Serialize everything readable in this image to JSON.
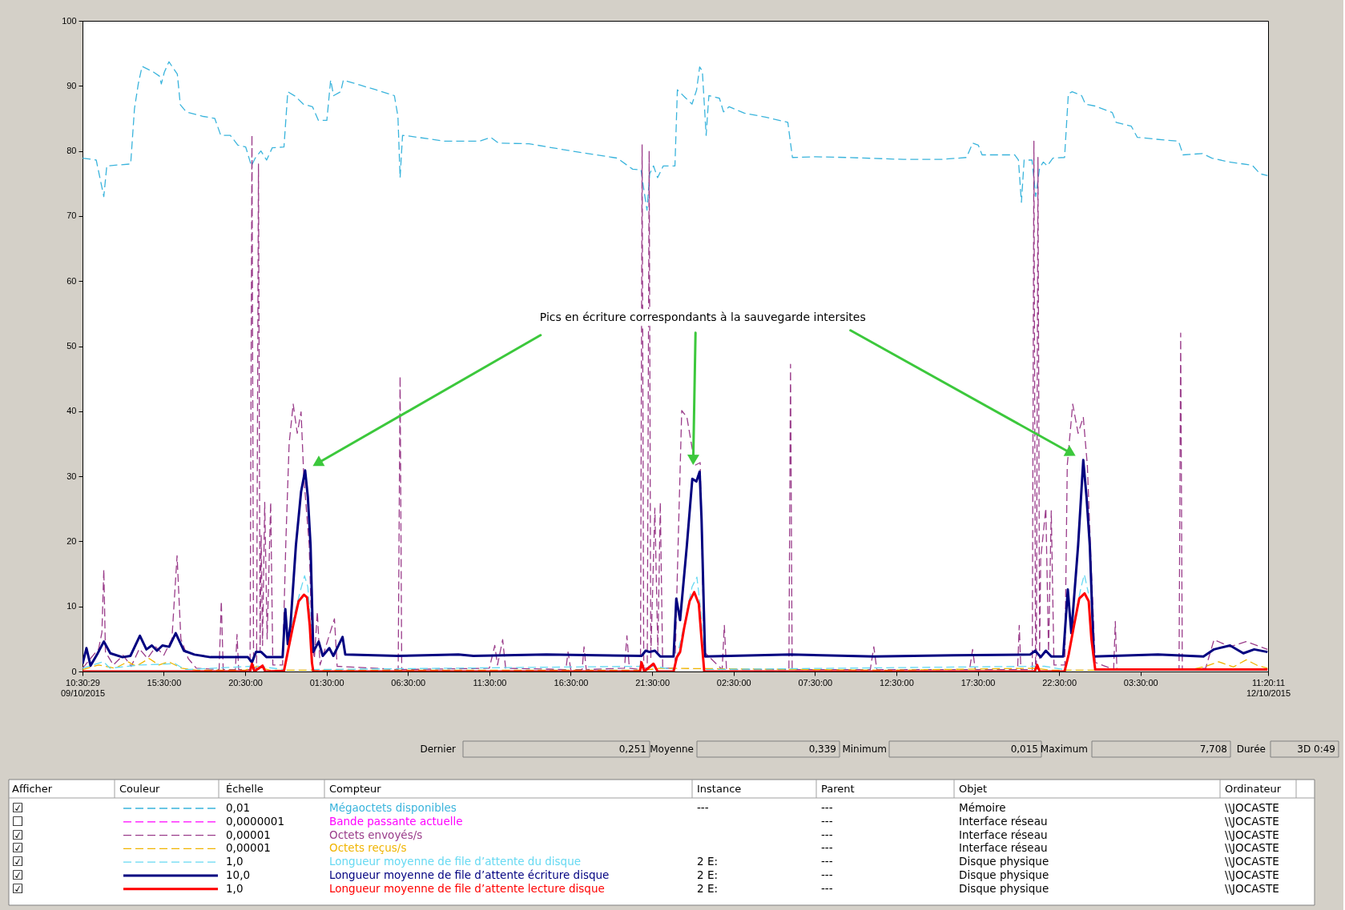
{
  "chart_data": [
    {
      "type": "line",
      "xlim": [
        "2015-10-09T10:30:29",
        "2015-10-12T11:20:11"
      ],
      "xticks": [
        {
          "value": "2015-10-09T10:30:29",
          "label": "10:30:29 09/10/2015"
        },
        {
          "value": "2015-10-09T15:30",
          "label": "15:30:00"
        },
        {
          "value": "2015-10-09T20:30",
          "label": "20:30:00"
        },
        {
          "value": "2015-10-10T01:30",
          "label": "01:30:00"
        },
        {
          "value": "2015-10-10T06:30",
          "label": "06:30:00"
        },
        {
          "value": "2015-10-10T11:30",
          "label": "11:30:00"
        },
        {
          "value": "2015-10-10T16:30",
          "label": "16:30:00"
        },
        {
          "value": "2015-10-10T21:30",
          "label": "21:30:00"
        },
        {
          "value": "2015-10-11T02:30",
          "label": "02:30:00"
        },
        {
          "value": "2015-10-11T07:30",
          "label": "07:30:00"
        },
        {
          "value": "2015-10-11T12:30",
          "label": "12:30:00"
        },
        {
          "value": "2015-10-11T17:30",
          "label": "17:30:00"
        },
        {
          "value": "2015-10-11T22:30",
          "label": "22:30:00"
        },
        {
          "value": "2015-10-12T03:30",
          "label": "03:30:00"
        },
        {
          "value": "2015-10-12T11:20:11",
          "label": "11:20:11 12/10/2015"
        }
      ],
      "ylim": [
        0,
        100
      ],
      "yticks": [
        0,
        10,
        20,
        30,
        40,
        50,
        60,
        70,
        80,
        90,
        100
      ],
      "legend": "bottom",
      "annotations": [
        {
          "text": "Pics en écriture correspondants à la sauvegarde intersites",
          "x": "2015-10-11T00:01",
          "y": 31.6
        }
      ],
      "series": [
        {
          "name": "Mégaoctets disponibles",
          "color": "#3ab4dc",
          "line_style": "dashed",
          "x": [
            "2015-10-09T10:31",
            "2015-10-09T11:21",
            "2015-10-09T11:49",
            "2015-10-09T12:00",
            "2015-10-09T13:28",
            "2015-10-09T13:42",
            "2015-10-09T13:56",
            "2015-10-09T14:10",
            "2015-10-09T14:53",
            "2015-10-09T15:14",
            "2015-10-09T15:21",
            "2015-10-09T15:32",
            "2015-10-09T15:49",
            "2015-10-09T16:20",
            "2015-10-09T16:31",
            "2015-10-09T16:53",
            "2015-10-09T17:56",
            "2015-10-09T18:38",
            "2015-10-09T19:00",
            "2015-10-09T19:35",
            "2015-10-09T20:03",
            "2015-10-09T20:32",
            "2015-10-09T20:53",
            "2015-10-09T21:07",
            "2015-10-09T21:28",
            "2015-10-09T21:49",
            "2015-10-09T22:10",
            "2015-10-09T22:53",
            "2015-10-09T23:07",
            "2015-10-09T23:35",
            "2015-10-10T00:04",
            "2015-10-10T00:38",
            "2015-10-10T01:00",
            "2015-10-10T01:31",
            "2015-10-10T01:45",
            "2015-10-10T01:56",
            "2015-10-10T02:22",
            "2015-10-10T02:32",
            "2015-10-10T03:35",
            "2015-10-10T04:32",
            "2015-10-10T05:40",
            "2015-10-10T05:53",
            "2015-10-10T06:01",
            "2015-10-10T06:10",
            "2015-10-10T06:32",
            "2015-10-10T08:46",
            "2015-10-10T10:53",
            "2015-10-10T11:35",
            "2015-10-10T12:04",
            "2015-10-10T13:56",
            "2015-10-10T16:46",
            "2015-10-10T19:21",
            "2015-10-10T20:18",
            "2015-10-10T20:49",
            "2015-10-10T20:57",
            "2015-10-10T21:11",
            "2015-10-10T21:21",
            "2015-10-10T21:35",
            "2015-10-10T21:50",
            "2015-10-10T22:11",
            "2015-10-10T22:54",
            "2015-10-10T23:03",
            "2015-10-10T23:32",
            "2015-10-10T23:57",
            "2015-10-11T00:14",
            "2015-10-11T00:25",
            "2015-10-11T00:35",
            "2015-10-11T00:49",
            "2015-10-11T00:59",
            "2015-10-11T01:38",
            "2015-10-11T01:53",
            "2015-10-11T02:14",
            "2015-10-11T03:10",
            "2015-10-11T04:28",
            "2015-10-11T05:50",
            "2015-10-11T06:07",
            "2015-10-11T07:32",
            "2015-10-11T09:25",
            "2015-10-11T12:56",
            "2015-10-11T15:17",
            "2015-10-11T16:49",
            "2015-10-11T17:11",
            "2015-10-11T17:32",
            "2015-10-11T17:46",
            "2015-10-11T19:46",
            "2015-10-11T20:00",
            "2015-10-11T20:11",
            "2015-10-11T20:21",
            "2015-10-11T20:50",
            "2015-10-11T21:04",
            "2015-10-11T21:18",
            "2015-10-11T21:32",
            "2015-10-11T21:46",
            "2015-10-11T22:07",
            "2015-10-11T22:50",
            "2015-10-11T23:04",
            "2015-10-11T23:18",
            "2015-10-11T23:53",
            "2015-10-12T00:07",
            "2015-10-12T00:43",
            "2015-10-12T01:46",
            "2015-10-12T02:00",
            "2015-10-12T02:56",
            "2015-10-12T03:18",
            "2015-10-12T04:28",
            "2015-10-12T05:50",
            "2015-10-12T06:07",
            "2015-10-12T07:18",
            "2015-10-12T07:53",
            "2015-10-12T08:57",
            "2015-10-12T10:22",
            "2015-10-12T10:50",
            "2015-10-12T11:18"
          ],
          "values": [
            78.9,
            78.6,
            73.0,
            77.7,
            78.0,
            86.5,
            90.3,
            93.0,
            92.1,
            91.5,
            90.3,
            92.1,
            93.7,
            91.8,
            87.1,
            86.0,
            85.3,
            85.0,
            82.4,
            82.4,
            80.9,
            80.6,
            77.7,
            78.9,
            80.0,
            78.6,
            80.5,
            80.6,
            89.1,
            88.4,
            87.2,
            86.8,
            84.7,
            84.7,
            90.9,
            88.5,
            89.1,
            90.9,
            90.1,
            89.4,
            88.5,
            85.3,
            75.9,
            82.4,
            82.3,
            81.5,
            81.5,
            82.1,
            81.2,
            81.1,
            79.9,
            78.9,
            77.2,
            77.1,
            74.7,
            70.9,
            76.5,
            77.7,
            75.9,
            77.7,
            77.7,
            89.4,
            88.2,
            87.2,
            89.4,
            92.9,
            92.3,
            82.4,
            88.5,
            88.1,
            86.0,
            86.8,
            85.8,
            85.2,
            84.4,
            79.0,
            79.1,
            79.0,
            78.7,
            78.7,
            79.0,
            81.2,
            80.9,
            79.4,
            79.4,
            78.6,
            72.1,
            78.6,
            78.6,
            73.0,
            77.4,
            78.3,
            77.7,
            78.9,
            79.0,
            88.8,
            89.1,
            88.5,
            87.2,
            86.9,
            85.9,
            84.4,
            83.8,
            82.1,
            81.8,
            81.5,
            79.4,
            79.6,
            78.9,
            78.3,
            77.8,
            76.5,
            76.2
          ]
        },
        {
          "name": "Bande passante actuelle",
          "color": "#ff00ff",
          "line_style": "dashed"
        },
        {
          "name": "Octets envoyés/s",
          "color": "#9a3c8a",
          "line_style": "dashed",
          "x": [
            "2015-10-09T10:31",
            "2015-10-09T11:00",
            "2015-10-09T11:30",
            "2015-10-09T11:42",
            "2015-10-09T11:49",
            "2015-10-09T11:55",
            "2015-10-09T12:24",
            "2015-10-09T13:00",
            "2015-10-09T13:30",
            "2015-10-09T14:00",
            "2015-10-09T14:30",
            "2015-10-09T15:00",
            "2015-10-09T15:30",
            "2015-10-09T16:00",
            "2015-10-09T16:19",
            "2015-10-09T16:33",
            "2015-10-09T17:00",
            "2015-10-09T17:30",
            "2015-10-09T18:54",
            "2015-10-09T19:02",
            "2015-10-09T19:09",
            "2015-10-09T19:54",
            "2015-10-09T20:00",
            "2015-10-09T20:06",
            "2015-10-09T20:48",
            "2015-10-09T20:55",
            "2015-10-09T21:01",
            "2015-10-09T21:12",
            "2015-10-09T21:19",
            "2015-10-09T21:25",
            "2015-10-09T21:29",
            "2015-10-09T21:34",
            "2015-10-09T21:42",
            "2015-10-09T21:51",
            "2015-10-09T22:04",
            "2015-10-09T22:12",
            "2015-10-09T22:48",
            "2015-10-09T23:00",
            "2015-10-09T23:12",
            "2015-10-09T23:27",
            "2015-10-09T23:42",
            "2015-10-09T23:56",
            "2015-10-10T00:06",
            "2015-10-10T00:26",
            "2015-10-10T00:36",
            "2015-10-10T00:45",
            "2015-10-10T00:56",
            "2015-10-10T01:06",
            "2015-10-10T01:59",
            "2015-10-10T02:09",
            "2015-10-10T05:54",
            "2015-10-10T06:01",
            "2015-10-10T06:07",
            "2015-10-10T11:30",
            "2015-10-10T11:50",
            "2015-10-10T12:00",
            "2015-10-10T12:19",
            "2015-10-10T12:30",
            "2015-10-10T16:12",
            "2015-10-10T16:20",
            "2015-10-10T16:30",
            "2015-10-10T17:12",
            "2015-10-10T17:19",
            "2015-10-10T17:27",
            "2015-10-10T19:48",
            "2015-10-10T19:57",
            "2015-10-10T20:06",
            "2015-10-10T20:47",
            "2015-10-10T20:53",
            "2015-10-10T20:59",
            "2015-10-10T21:12",
            "2015-10-10T21:19",
            "2015-10-10T21:25",
            "2015-10-10T21:40",
            "2015-10-10T21:51",
            "2015-10-10T22:00",
            "2015-10-10T22:09",
            "2015-10-10T22:54",
            "2015-10-10T23:06",
            "2015-10-10T23:19",
            "2015-10-10T23:38",
            "2015-10-11T00:08",
            "2015-10-11T00:27",
            "2015-10-11T00:42",
            "2015-10-11T01:48",
            "2015-10-11T01:56",
            "2015-10-11T02:04",
            "2015-10-11T05:54",
            "2015-10-11T06:00",
            "2015-10-11T06:06",
            "2015-10-11T10:54",
            "2015-10-11T11:07",
            "2015-10-11T11:18",
            "2015-10-11T17:00",
            "2015-10-11T17:11",
            "2015-10-11T17:21",
            "2015-10-11T19:57",
            "2015-10-11T20:03",
            "2015-10-11T20:09",
            "2015-10-11T20:51",
            "2015-10-11T20:57",
            "2015-10-11T21:03",
            "2015-10-11T21:06",
            "2015-10-11T21:12",
            "2015-10-11T21:18",
            "2015-10-11T21:22",
            "2015-10-11T21:41",
            "2015-10-11T21:51",
            "2015-10-11T22:01",
            "2015-10-11T22:11",
            "2015-10-11T22:51",
            "2015-10-11T23:00",
            "2015-10-11T23:20",
            "2015-10-11T23:40",
            "2015-10-11T23:59",
            "2015-10-12T00:14",
            "2015-10-12T00:29",
            "2015-10-12T00:43",
            "2015-10-12T01:51",
            "2015-10-12T01:57",
            "2015-10-12T02:03",
            "2015-10-12T05:52",
            "2015-10-12T05:58",
            "2015-10-12T06:04",
            "2015-10-12T07:30",
            "2015-10-12T08:01",
            "2015-10-12T09:00",
            "2015-10-12T09:59",
            "2015-10-12T11:18"
          ],
          "values": [
            0.5,
            2.0,
            3.5,
            6.0,
            15.7,
            3.0,
            1.0,
            2.5,
            0.8,
            3.5,
            2.0,
            3.8,
            2.5,
            5.0,
            17.8,
            5.0,
            2.0,
            0.5,
            0.3,
            10.8,
            0.3,
            0.3,
            5.7,
            0.3,
            0.3,
            82.5,
            0.5,
            0.5,
            78.0,
            3.0,
            21.0,
            4.0,
            26.0,
            5.0,
            26.0,
            1.0,
            1.0,
            20.0,
            35.0,
            41.1,
            36.6,
            39.9,
            30.0,
            19.4,
            5.0,
            2.0,
            9.2,
            1.0,
            8.1,
            0.8,
            0.3,
            45.4,
            0.3,
            0.5,
            4.0,
            1.0,
            4.9,
            0.5,
            0.3,
            3.0,
            0.3,
            0.3,
            3.8,
            0.3,
            0.5,
            5.5,
            0.5,
            0.3,
            81.0,
            0.5,
            0.5,
            80.0,
            2.0,
            25.1,
            3.0,
            26.0,
            0.5,
            0.5,
            20.0,
            40.1,
            39.1,
            31.7,
            32.1,
            3.0,
            0.3,
            7.1,
            0.3,
            0.3,
            47.2,
            0.3,
            0.3,
            3.8,
            0.3,
            0.3,
            3.4,
            0.3,
            0.3,
            7.1,
            0.3,
            0.3,
            81.5,
            0.5,
            0.5,
            79.0,
            2.0,
            17.3,
            25.1,
            3.0,
            24.7,
            1.0,
            1.0,
            31.7,
            41.1,
            36.6,
            39.1,
            31.7,
            15.3,
            1.4,
            0.3,
            7.7,
            0.3,
            0.3,
            52.0,
            0.3,
            0.5,
            4.9,
            3.8,
            4.6,
            3.4
          ]
        },
        {
          "name": "Octets reçus/s",
          "color": "#f0b400",
          "line_style": "dashed",
          "x": [
            "2015-10-09T10:31",
            "2015-10-09T11:30",
            "2015-10-09T12:30",
            "2015-10-09T13:18",
            "2015-10-09T13:48",
            "2015-10-09T14:36",
            "2015-10-09T15:12",
            "2015-10-09T15:48",
            "2015-10-09T16:36",
            "2015-10-09T17:30",
            "2015-10-09T20:30",
            "2015-10-09T21:12",
            "2015-10-09T22:00",
            "2015-10-10T06:00",
            "2015-10-10T21:00",
            "2015-10-10T22:00",
            "2015-10-11T12:00",
            "2015-10-11T21:00",
            "2015-10-11T22:00",
            "2015-10-12T06:30",
            "2015-10-12T07:30",
            "2015-10-12T08:18",
            "2015-10-12T09:12",
            "2015-10-12T10:00",
            "2015-10-12T10:42",
            "2015-10-12T11:18"
          ],
          "values": [
            0.3,
            1.0,
            0.5,
            1.5,
            0.8,
            2.0,
            1.0,
            1.5,
            0.5,
            0.2,
            0.2,
            0.8,
            0.2,
            0.2,
            0.2,
            0.5,
            0.2,
            0.5,
            0.2,
            0.2,
            0.8,
            1.5,
            0.7,
            1.8,
            0.9,
            0.5
          ]
        },
        {
          "name": "Longueur moyenne de file d’attente du disque",
          "color": "#66d9f2",
          "line_style": "dashed",
          "x": [
            "2015-10-09T10:31",
            "2015-10-09T11:48",
            "2015-10-09T12:12",
            "2015-10-09T14:00",
            "2015-10-09T16:12",
            "2015-10-09T16:48",
            "2015-10-09T20:54",
            "2015-10-09T21:18",
            "2015-10-09T22:53",
            "2015-10-09T23:00",
            "2015-10-09T23:27",
            "2015-10-09T23:54",
            "2015-10-10T00:09",
            "2015-10-10T00:21",
            "2015-10-10T00:30",
            "2015-10-10T00:39",
            "2015-10-10T20:54",
            "2015-10-10T21:36",
            "2015-10-10T22:51",
            "2015-10-10T23:00",
            "2015-10-10T23:30",
            "2015-10-10T23:57",
            "2015-10-11T00:15",
            "2015-10-11T00:30",
            "2015-10-11T00:42",
            "2015-10-11T20:54",
            "2015-10-11T21:36",
            "2015-10-11T22:48",
            "2015-10-11T23:03",
            "2015-10-11T23:27",
            "2015-10-11T23:51",
            "2015-10-12T00:03",
            "2015-10-12T00:18"
          ],
          "values": [
            0.5,
            1.5,
            0.5,
            1.0,
            1.2,
            0.3,
            0.8,
            0.8,
            0.3,
            1.5,
            8.0,
            12.5,
            14.7,
            13.0,
            8.0,
            0.3,
            0.8,
            0.8,
            0.3,
            2.0,
            7.5,
            13.0,
            14.5,
            9.0,
            0.3,
            0.8,
            0.8,
            0.3,
            2.0,
            8.0,
            13.0,
            14.9,
            12.0
          ]
        },
        {
          "name": "Longueur moyenne de file d’attente écriture disque",
          "color": "#000080",
          "line_style": "solid",
          "x": [
            "2015-10-09T10:31",
            "2015-10-09T10:45",
            "2015-10-09T11:00",
            "2015-10-09T11:24",
            "2015-10-09T11:49",
            "2015-10-09T12:13",
            "2015-10-09T12:58",
            "2015-10-09T13:27",
            "2015-10-09T14:02",
            "2015-10-09T14:26",
            "2015-10-09T14:46",
            "2015-10-09T15:05",
            "2015-10-09T15:25",
            "2015-10-09T15:50",
            "2015-10-09T16:14",
            "2015-10-09T16:44",
            "2015-10-09T17:23",
            "2015-10-09T18:22",
            "2015-10-09T20:40",
            "2015-10-09T20:55",
            "2015-10-09T21:10",
            "2015-10-09T21:29",
            "2015-10-09T21:49",
            "2015-10-09T22:48",
            "2015-10-09T22:58",
            "2015-10-09T23:07",
            "2015-10-09T23:17",
            "2015-10-09T23:37",
            "2015-10-09T23:56",
            "2015-10-10T00:11",
            "2015-10-10T00:21",
            "2015-10-10T00:31",
            "2015-10-10T00:41",
            "2015-10-10T01:01",
            "2015-10-10T01:16",
            "2015-10-10T01:40",
            "2015-10-10T01:55",
            "2015-10-10T02:29",
            "2015-10-10T02:39",
            "2015-10-10T05:51",
            "2015-10-10T09:36",
            "2015-10-10T10:31",
            "2015-10-10T15:00",
            "2015-10-10T20:51",
            "2015-10-10T21:06",
            "2015-10-10T21:20",
            "2015-10-10T21:40",
            "2015-10-10T22:00",
            "2015-10-10T22:49",
            "2015-10-10T22:59",
            "2015-10-10T23:13",
            "2015-10-10T23:38",
            "2015-10-10T23:58",
            "2015-10-11T00:13",
            "2015-10-11T00:25",
            "2015-10-11T00:32",
            "2015-10-11T00:45",
            "2015-10-11T06:00",
            "2015-10-11T11:07",
            "2015-10-11T16:00",
            "2015-10-11T20:43",
            "2015-10-11T21:02",
            "2015-10-11T21:22",
            "2015-10-11T21:41",
            "2015-10-11T22:01",
            "2015-10-11T22:45",
            "2015-10-11T23:02",
            "2015-10-11T23:15",
            "2015-10-11T23:40",
            "2015-10-11T23:59",
            "2015-10-12T00:11",
            "2015-10-12T00:23",
            "2015-10-12T00:38",
            "2015-10-12T04:34",
            "2015-10-12T07:22",
            "2015-10-12T08:01",
            "2015-10-12T09:00",
            "2015-10-12T09:49",
            "2015-10-12T10:29",
            "2015-10-12T11:18"
          ],
          "values": [
            1.2,
            3.6,
            0.9,
            2.6,
            4.6,
            2.8,
            2.2,
            2.4,
            5.5,
            3.4,
            4.0,
            3.2,
            4.0,
            3.8,
            5.9,
            3.2,
            2.6,
            2.2,
            2.2,
            1.4,
            3.0,
            3.0,
            2.2,
            2.2,
            9.6,
            4.2,
            7.1,
            19.4,
            27.6,
            30.9,
            26.8,
            19.4,
            3.0,
            4.6,
            2.4,
            3.6,
            2.4,
            5.3,
            2.6,
            2.4,
            2.6,
            2.4,
            2.6,
            2.4,
            3.2,
            3.0,
            3.2,
            2.3,
            2.3,
            11.2,
            7.9,
            19.4,
            29.6,
            29.2,
            30.7,
            23.5,
            2.3,
            2.6,
            2.3,
            2.5,
            2.6,
            3.2,
            2.2,
            3.2,
            2.3,
            2.3,
            12.6,
            5.9,
            19.4,
            32.5,
            26.8,
            19.4,
            2.3,
            2.6,
            2.3,
            3.4,
            4.0,
            2.8,
            3.4,
            3.0
          ]
        },
        {
          "name": "Longueur moyenne de file d’attente lecture disque",
          "color": "#ff0000",
          "line_style": "solid",
          "x": [
            "2015-10-09T10:31",
            "2015-10-09T20:48",
            "2015-10-09T20:55",
            "2015-10-09T21:04",
            "2015-10-09T21:34",
            "2015-10-09T21:44",
            "2015-10-09T22:53",
            "2015-10-09T23:07",
            "2015-10-09T23:27",
            "2015-10-09T23:47",
            "2015-10-10T00:07",
            "2015-10-10T00:18",
            "2015-10-10T00:28",
            "2015-10-10T00:36",
            "2015-10-10T00:41",
            "2015-10-10T20:45",
            "2015-10-10T20:51",
            "2015-10-10T21:01",
            "2015-10-10T21:35",
            "2015-10-10T21:50",
            "2015-10-10T22:49",
            "2015-10-10T23:01",
            "2015-10-10T23:13",
            "2015-10-10T23:28",
            "2015-10-10T23:48",
            "2015-10-11T00:05",
            "2015-10-11T00:22",
            "2015-10-11T00:32",
            "2015-10-11T00:42",
            "2015-10-11T21:00",
            "2015-10-11T21:09",
            "2015-10-11T21:18",
            "2015-10-11T22:50",
            "2015-10-11T23:05",
            "2015-10-11T23:25",
            "2015-10-11T23:44",
            "2015-10-12T00:04",
            "2015-10-12T00:19",
            "2015-10-12T00:29",
            "2015-10-12T00:43",
            "2015-10-12T11:18"
          ],
          "values": [
            0.0,
            0.0,
            1.2,
            0.0,
            0.9,
            0.0,
            0.1,
            3.0,
            7.1,
            10.8,
            11.8,
            11.4,
            7.1,
            1.4,
            0.0,
            0.0,
            1.4,
            0.0,
            1.2,
            0.0,
            0.0,
            2.2,
            3.0,
            6.7,
            10.8,
            12.2,
            10.4,
            5.0,
            0.0,
            0.0,
            1.0,
            0.0,
            0.0,
            2.6,
            7.1,
            11.2,
            12.0,
            10.8,
            5.0,
            0.3,
            0.3
          ]
        }
      ]
    },
    {
      "type": "other",
      "categories": [
        "Dernier",
        "Moyenne",
        "Minimum",
        "Maximum",
        "Durée"
      ],
      "cell_labels": [
        [
          "0,251",
          "0,339",
          "0,015",
          "7,708",
          "3D 0:49"
        ]
      ]
    },
    {
      "type": "other",
      "categories": [
        "Afficher",
        "Couleur",
        "Échelle",
        "Compteur",
        "Instance",
        "Parent",
        "Objet",
        "Ordinateur"
      ],
      "cell_labels": [
        [
          "☑",
          null,
          "0,01",
          null,
          "---",
          "---",
          "Mémoire",
          "\\\\JOCASTE"
        ],
        [
          "☐",
          null,
          "0,0000001",
          null,
          null,
          "---",
          "Interface réseau",
          "\\\\JOCASTE"
        ],
        [
          "☑",
          null,
          "0,00001",
          null,
          null,
          "---",
          "Interface réseau",
          "\\\\JOCASTE"
        ],
        [
          "☑",
          null,
          "0,00001",
          null,
          null,
          "---",
          "Interface réseau",
          "\\\\JOCASTE"
        ],
        [
          "☑",
          null,
          "1,0",
          null,
          "2 E:",
          "---",
          "Disque physique",
          "\\\\JOCASTE"
        ],
        [
          "☑",
          null,
          "10,0",
          null,
          "2 E:",
          "---",
          "Disque physique",
          "\\\\JOCASTE"
        ],
        [
          "☑",
          null,
          "1,0",
          null,
          "2 E:",
          "---",
          "Disque physique",
          "\\\\JOCASTE"
        ]
      ]
    }
  ]
}
